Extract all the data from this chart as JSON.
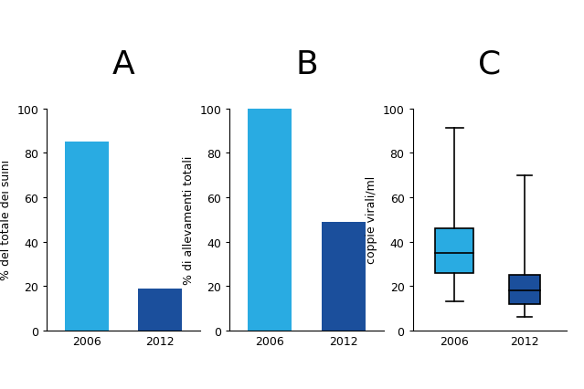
{
  "panel_A": {
    "title": "A",
    "categories": [
      "2006",
      "2012"
    ],
    "values": [
      85,
      19
    ],
    "colors": [
      "#29ABE2",
      "#1B4F9C"
    ],
    "ylabel": "% del totale dei suini",
    "ylim": [
      0,
      100
    ],
    "yticks": [
      0,
      20,
      40,
      60,
      80,
      100
    ]
  },
  "panel_B": {
    "title": "B",
    "categories": [
      "2006",
      "2012"
    ],
    "values": [
      100,
      49
    ],
    "colors": [
      "#29ABE2",
      "#1B4F9C"
    ],
    "ylabel": "% di allevamenti totali",
    "ylim": [
      0,
      100
    ],
    "yticks": [
      0,
      20,
      40,
      60,
      80,
      100
    ]
  },
  "panel_C": {
    "title": "C",
    "categories": [
      "2006",
      "2012"
    ],
    "ylabel": "coppie virali/ml",
    "ylim": [
      0,
      100
    ],
    "yticks": [
      0,
      20,
      40,
      60,
      80,
      100
    ],
    "box_2006": {
      "whisker_low": 13,
      "q1": 26,
      "median": 35,
      "q3": 46,
      "whisker_high": 91,
      "color": "#29ABE2"
    },
    "box_2012": {
      "whisker_low": 6,
      "q1": 12,
      "median": 18,
      "q3": 25,
      "whisker_high": 70,
      "color": "#1B4F9C"
    }
  },
  "title_fontsize": 26,
  "label_fontsize": 9,
  "tick_fontsize": 9,
  "background_color": "#ffffff",
  "figsize": [
    6.39,
    4.27
  ],
  "dpi": 100
}
